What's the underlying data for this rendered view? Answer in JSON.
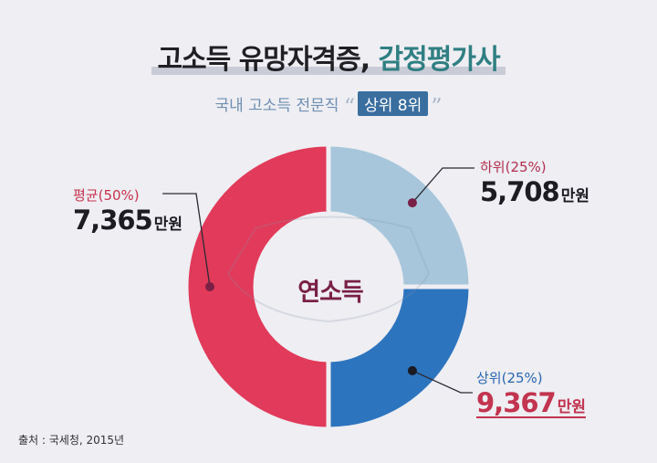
{
  "header": {
    "title_main": "고소득 유망자격증, ",
    "title_accent": "감정평가사",
    "subtitle_prefix": "국내 고소득 전문직",
    "subtitle_open_quote": "“",
    "subtitle_highlight": "상위 8위",
    "subtitle_close_quote": "”"
  },
  "chart_data": {
    "type": "pie",
    "center_label": "연소득",
    "slices": [
      {
        "name": "하위(25%)",
        "share": 25,
        "amount": "5,708",
        "unit": "만원",
        "color": "#a7c6db"
      },
      {
        "name": "상위(25%)",
        "share": 25,
        "amount": "9,367",
        "unit": "만원",
        "color": "#2d74be"
      },
      {
        "name": "평균(50%)",
        "share": 50,
        "amount": "7,365",
        "unit": "만원",
        "color": "#e23a5a"
      }
    ]
  },
  "footer": {
    "source": "출처 : 국세청, 2015년"
  }
}
